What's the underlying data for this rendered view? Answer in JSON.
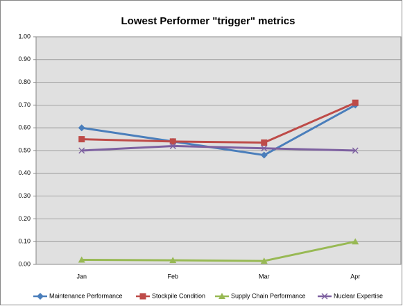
{
  "chart_data": {
    "type": "line",
    "title": "Lowest Performer \"trigger\" metrics",
    "categories": [
      "Jan",
      "Feb",
      "Mar",
      "Apr"
    ],
    "series": [
      {
        "name": "Maintenance Performance",
        "color": "#4a7ebb",
        "marker": "diamond",
        "values": [
          0.6,
          0.54,
          0.48,
          0.7
        ]
      },
      {
        "name": "Stockpile Condition",
        "color": "#be4b48",
        "marker": "square",
        "values": [
          0.55,
          0.54,
          0.535,
          0.71
        ]
      },
      {
        "name": "Supply Chain Performance",
        "color": "#98b954",
        "marker": "triangle",
        "values": [
          0.02,
          0.018,
          0.015,
          0.1
        ]
      },
      {
        "name": "Nuclear Expertise",
        "color": "#7d60a0",
        "marker": "x",
        "values": [
          0.5,
          0.52,
          0.51,
          0.5
        ]
      }
    ],
    "ylim": [
      0,
      1
    ],
    "yticks": [
      {
        "value": 0,
        "label": "0.00"
      },
      {
        "value": 0.1,
        "label": "0.10"
      },
      {
        "value": 0.2,
        "label": "0.20"
      },
      {
        "value": 0.3,
        "label": "0.30"
      },
      {
        "value": 0.4,
        "label": "0.40"
      },
      {
        "value": 0.5,
        "label": "0.50"
      },
      {
        "value": 0.6,
        "label": "0.60"
      },
      {
        "value": 0.7,
        "label": "0.70"
      },
      {
        "value": 0.8,
        "label": "0.80"
      },
      {
        "value": 0.9,
        "label": "0.90"
      },
      {
        "value": 1,
        "label": "1.00"
      }
    ],
    "grid": true,
    "legend": "bottom"
  }
}
